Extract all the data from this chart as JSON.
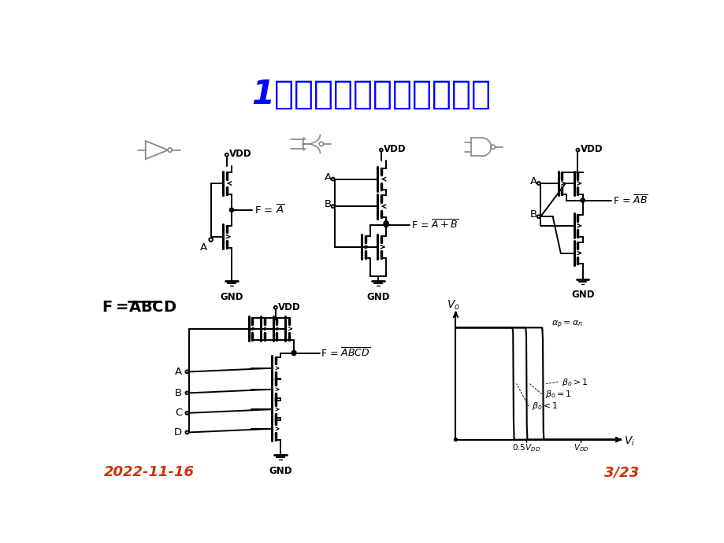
{
  "title": "1、非门、或非门、与非门",
  "title_color": "#0000FF",
  "title_fontsize": 30,
  "bg_color": "#FFFFFF",
  "footer_date": "2022-11-16",
  "footer_page": "3/23",
  "footer_color": "#CC3300",
  "footer_fontsize": 13
}
